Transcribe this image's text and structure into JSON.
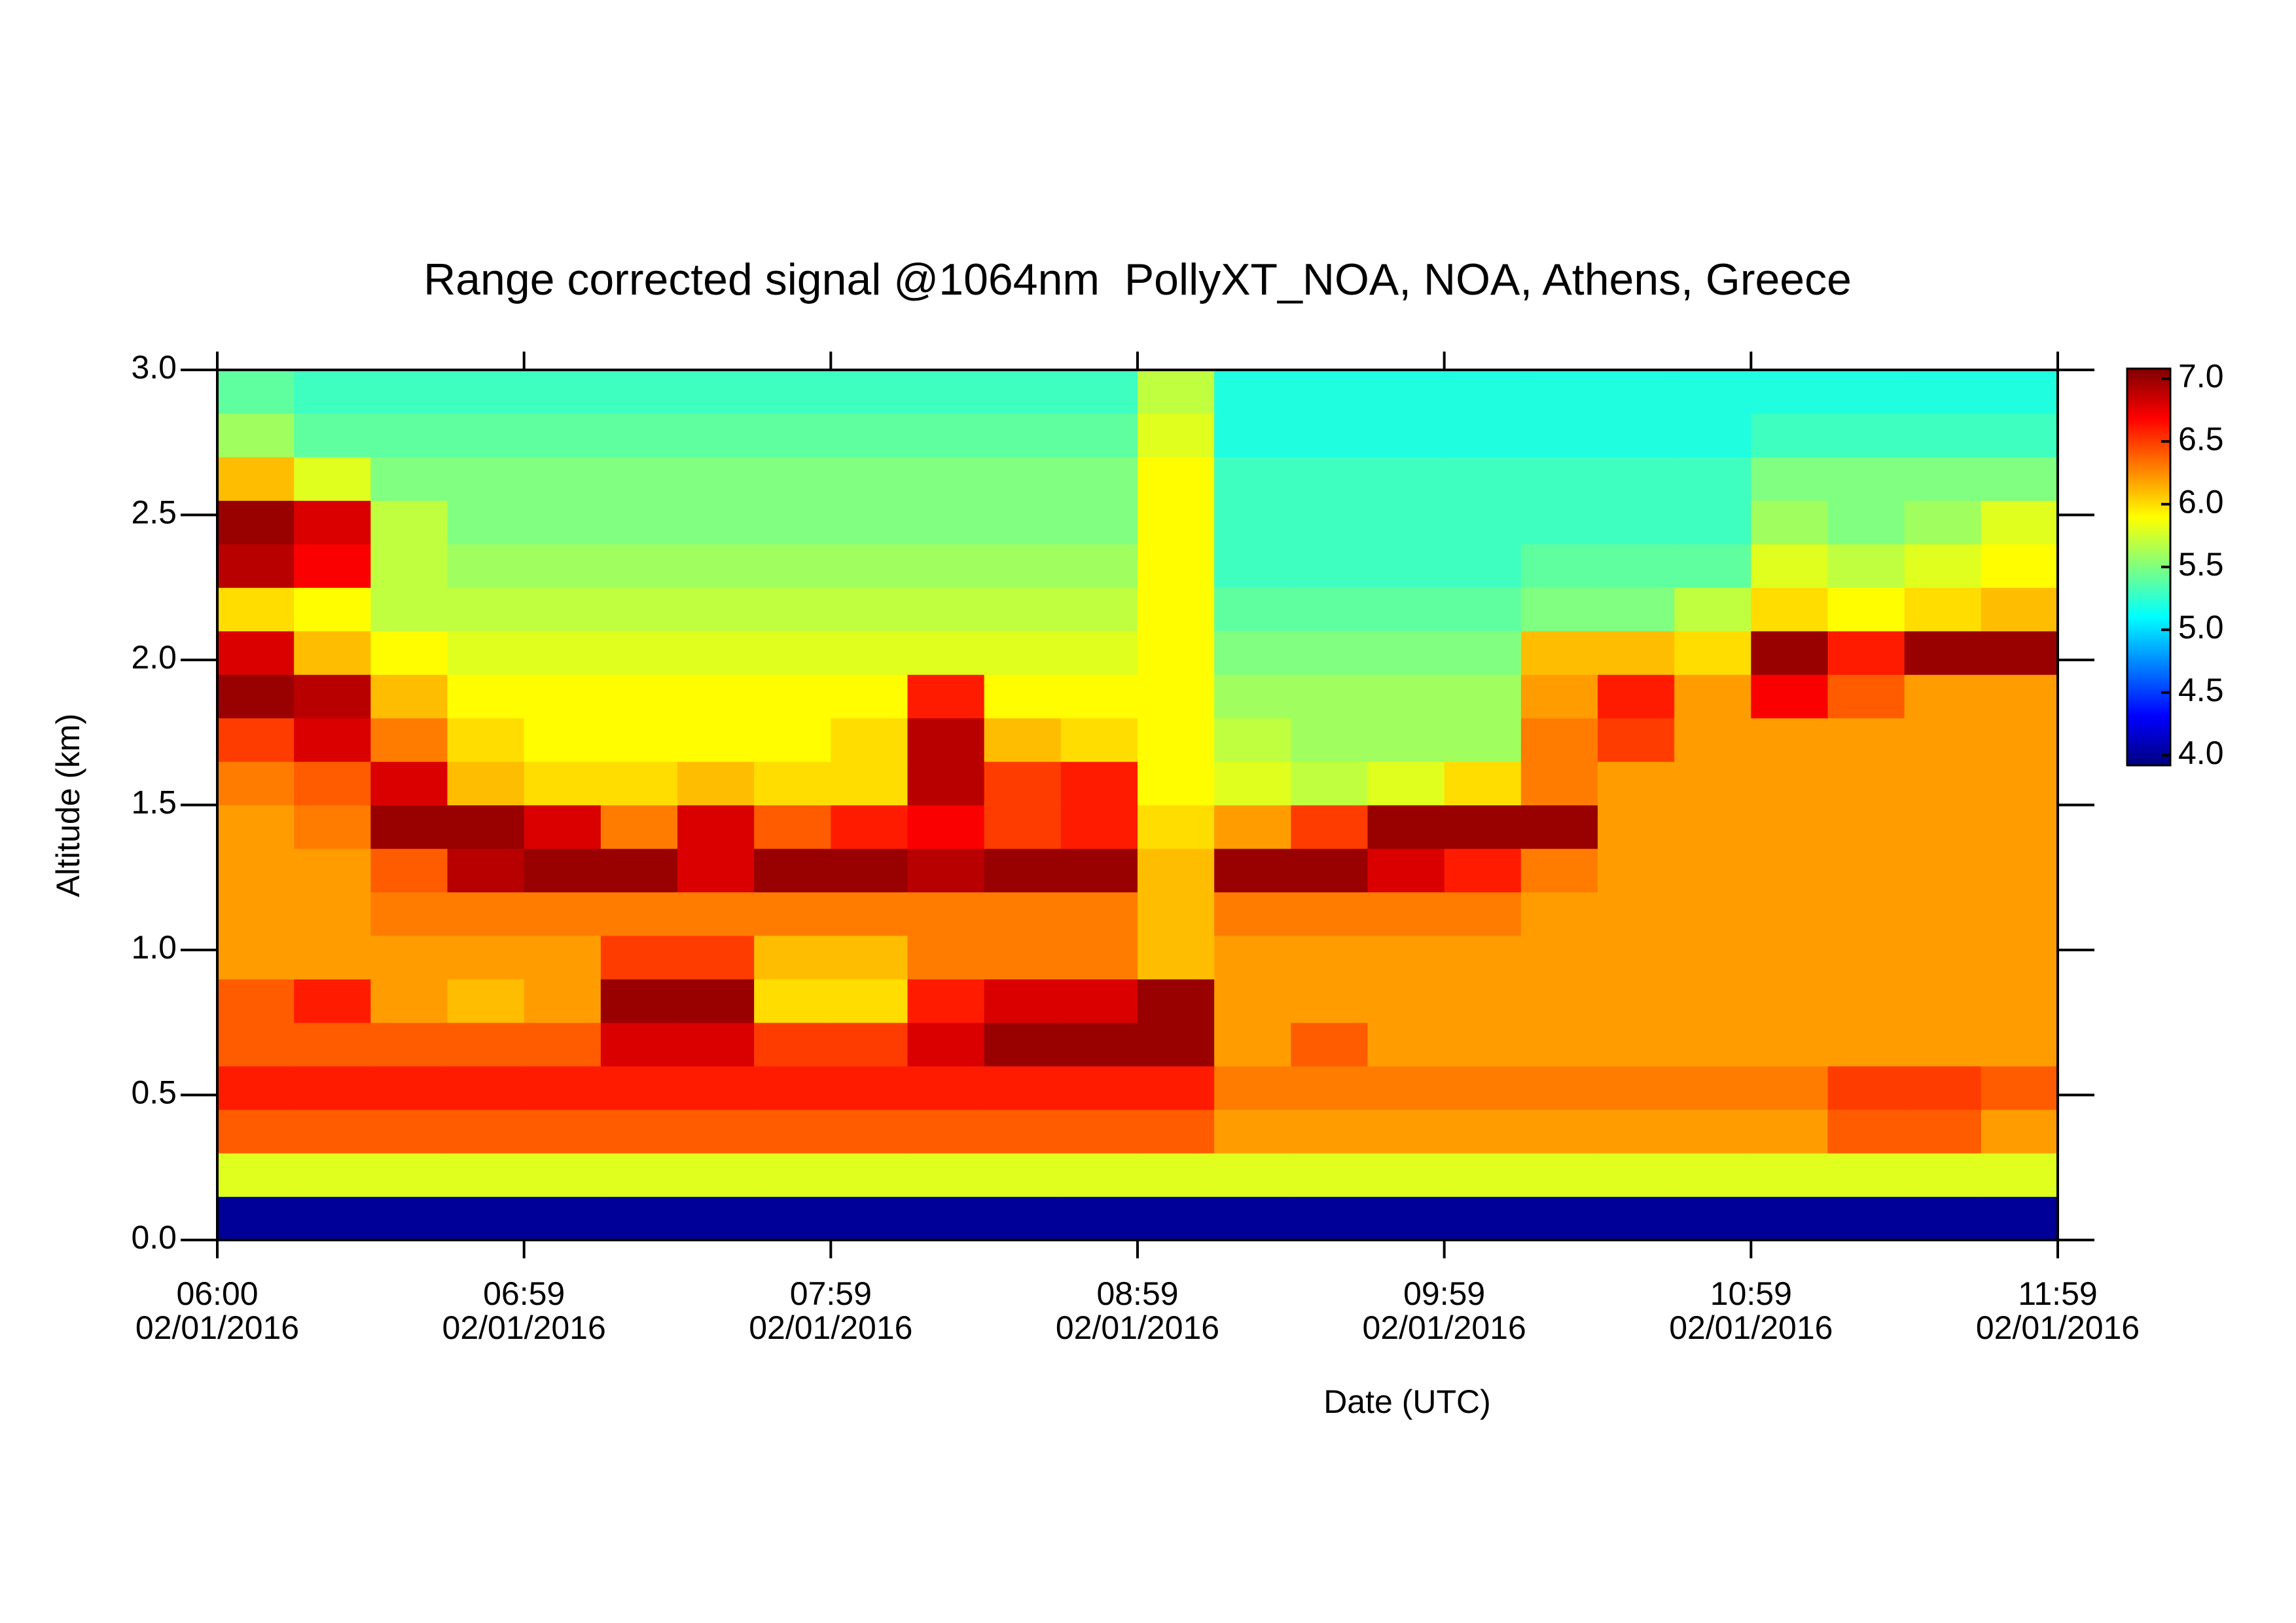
{
  "chart_data": {
    "type": "heatmap",
    "title": "Range corrected signal @1064nm  PollyXT_NOA, NOA, Athens, Greece",
    "xlabel": "Date (UTC)",
    "ylabel": "Altitude (km)",
    "xlim": [
      6,
      12
    ],
    "ylim": [
      0,
      3
    ],
    "xticks": [
      {
        "value": 6,
        "label": "06:00",
        "date": "02/01/2016"
      },
      {
        "value": 7,
        "label": "06:59",
        "date": "02/01/2016"
      },
      {
        "value": 8,
        "label": "07:59",
        "date": "02/01/2016"
      },
      {
        "value": 9,
        "label": "08:59",
        "date": "02/01/2016"
      },
      {
        "value": 10,
        "label": "09:59",
        "date": "02/01/2016"
      },
      {
        "value": 11,
        "label": "10:59",
        "date": "02/01/2016"
      },
      {
        "value": 12,
        "label": "11:59",
        "date": "02/01/2016"
      }
    ],
    "yticks": [
      {
        "value": 0,
        "label": "0.0"
      },
      {
        "value": 0.5,
        "label": "0.5"
      },
      {
        "value": 1,
        "label": "1.0"
      },
      {
        "value": 1.5,
        "label": "1.5"
      },
      {
        "value": 2,
        "label": "2.0"
      },
      {
        "value": 2.5,
        "label": "2.5"
      },
      {
        "value": 3,
        "label": "3.0"
      }
    ],
    "x": [
      6.125,
      6.375,
      6.625,
      6.875,
      7.125,
      7.375,
      7.625,
      7.875,
      8.125,
      8.375,
      8.625,
      8.875,
      9.125,
      9.375,
      9.625,
      9.875,
      10.125,
      10.375,
      10.625,
      10.875,
      11.125,
      11.375,
      11.625,
      11.875
    ],
    "y": [
      0.075,
      0.225,
      0.375,
      0.525,
      0.675,
      0.825,
      0.975,
      1.125,
      1.275,
      1.425,
      1.575,
      1.725,
      1.875,
      2.025,
      2.175,
      2.325,
      2.475,
      2.625,
      2.775,
      2.925
    ],
    "z": [
      [
        4,
        4,
        4,
        4,
        4,
        4,
        4,
        4,
        4,
        4,
        4,
        4,
        4,
        4,
        4,
        4,
        4,
        4,
        4,
        4,
        4,
        4,
        4,
        4
      ],
      [
        5.8,
        5.8,
        5.8,
        5.8,
        5.8,
        5.8,
        5.8,
        5.8,
        5.8,
        5.8,
        5.8,
        5.8,
        5.8,
        5.8,
        5.8,
        5.8,
        5.8,
        5.8,
        5.8,
        5.8,
        5.8,
        5.8,
        5.8,
        5.8
      ],
      [
        6.4,
        6.4,
        6.4,
        6.4,
        6.4,
        6.4,
        6.4,
        6.4,
        6.4,
        6.4,
        6.4,
        6.4,
        6.4,
        6.2,
        6.2,
        6.2,
        6.2,
        6.2,
        6.2,
        6.2,
        6.2,
        6.4,
        6.4,
        6.2
      ],
      [
        6.6,
        6.6,
        6.6,
        6.6,
        6.6,
        6.6,
        6.6,
        6.6,
        6.6,
        6.6,
        6.6,
        6.6,
        6.6,
        6.3,
        6.3,
        6.3,
        6.3,
        6.3,
        6.3,
        6.3,
        6.3,
        6.5,
        6.5,
        6.4
      ],
      [
        6.4,
        6.4,
        6.4,
        6.4,
        6.4,
        6.8,
        6.8,
        6.5,
        6.5,
        6.8,
        7.0,
        7.0,
        7.0,
        6.2,
        6.4,
        6.2,
        6.2,
        6.2,
        6.2,
        6.2,
        6.2,
        6.2,
        6.2,
        6.2
      ],
      [
        6.4,
        6.6,
        6.2,
        6.1,
        6.2,
        7.0,
        7.0,
        6.0,
        6.0,
        6.6,
        6.8,
        6.8,
        7.0,
        6.2,
        6.2,
        6.2,
        6.2,
        6.2,
        6.2,
        6.2,
        6.2,
        6.2,
        6.2,
        6.2
      ],
      [
        6.2,
        6.2,
        6.2,
        6.2,
        6.2,
        6.5,
        6.5,
        6.1,
        6.1,
        6.3,
        6.3,
        6.3,
        6.1,
        6.2,
        6.2,
        6.2,
        6.2,
        6.2,
        6.2,
        6.2,
        6.2,
        6.2,
        6.2,
        6.2
      ],
      [
        6.2,
        6.2,
        6.3,
        6.3,
        6.3,
        6.3,
        6.3,
        6.3,
        6.3,
        6.3,
        6.3,
        6.3,
        6.1,
        6.3,
        6.3,
        6.3,
        6.3,
        6.2,
        6.2,
        6.2,
        6.2,
        6.2,
        6.2,
        6.2
      ],
      [
        6.2,
        6.2,
        6.4,
        6.9,
        7.0,
        7.0,
        6.8,
        7.0,
        7.0,
        6.9,
        7.0,
        7.0,
        6.1,
        7.0,
        7.0,
        6.8,
        6.6,
        6.3,
        6.2,
        6.2,
        6.2,
        6.2,
        6.2,
        6.2
      ],
      [
        6.2,
        6.3,
        7.0,
        7.0,
        6.8,
        6.3,
        6.8,
        6.4,
        6.6,
        6.7,
        6.5,
        6.6,
        6.0,
        6.2,
        6.5,
        7.0,
        7.0,
        7.0,
        6.2,
        6.2,
        6.2,
        6.2,
        6.2,
        6.2
      ],
      [
        6.3,
        6.4,
        6.8,
        6.1,
        6.0,
        6.0,
        6.1,
        6.0,
        6.0,
        6.9,
        6.5,
        6.6,
        5.9,
        5.8,
        5.7,
        5.8,
        6.0,
        6.3,
        6.2,
        6.2,
        6.2,
        6.2,
        6.2,
        6.2
      ],
      [
        6.5,
        6.8,
        6.3,
        6.0,
        5.9,
        5.9,
        5.9,
        5.9,
        6.0,
        6.9,
        6.1,
        6.0,
        5.9,
        5.7,
        5.6,
        5.6,
        5.6,
        6.3,
        6.5,
        6.2,
        6.2,
        6.2,
        6.2,
        6.2
      ],
      [
        7.0,
        6.9,
        6.1,
        5.9,
        5.9,
        5.9,
        5.9,
        5.9,
        5.9,
        6.6,
        5.9,
        5.9,
        5.9,
        5.6,
        5.6,
        5.6,
        5.6,
        6.2,
        6.6,
        6.2,
        6.7,
        6.4,
        6.2,
        6.2
      ],
      [
        6.8,
        6.1,
        5.9,
        5.8,
        5.8,
        5.8,
        5.8,
        5.8,
        5.8,
        5.8,
        5.8,
        5.8,
        5.9,
        5.5,
        5.5,
        5.5,
        5.5,
        6.1,
        6.1,
        6.0,
        7.0,
        6.6,
        7.0,
        7.0
      ],
      [
        6.0,
        5.9,
        5.7,
        5.7,
        5.7,
        5.7,
        5.7,
        5.7,
        5.7,
        5.7,
        5.7,
        5.7,
        5.9,
        5.4,
        5.4,
        5.4,
        5.4,
        5.5,
        5.5,
        5.7,
        6.0,
        5.9,
        6.0,
        6.1
      ],
      [
        6.9,
        6.7,
        5.7,
        5.6,
        5.6,
        5.6,
        5.6,
        5.6,
        5.6,
        5.6,
        5.6,
        5.6,
        5.9,
        5.3,
        5.3,
        5.3,
        5.3,
        5.4,
        5.4,
        5.4,
        5.8,
        5.7,
        5.8,
        5.9
      ],
      [
        7.0,
        6.8,
        5.7,
        5.5,
        5.5,
        5.5,
        5.5,
        5.5,
        5.5,
        5.5,
        5.5,
        5.5,
        5.9,
        5.3,
        5.3,
        5.3,
        5.3,
        5.3,
        5.3,
        5.3,
        5.6,
        5.5,
        5.6,
        5.8
      ],
      [
        6.1,
        5.8,
        5.5,
        5.5,
        5.5,
        5.5,
        5.5,
        5.5,
        5.5,
        5.5,
        5.5,
        5.5,
        5.9,
        5.3,
        5.3,
        5.3,
        5.3,
        5.3,
        5.3,
        5.3,
        5.5,
        5.5,
        5.5,
        5.5
      ],
      [
        5.6,
        5.4,
        5.4,
        5.4,
        5.4,
        5.4,
        5.4,
        5.4,
        5.4,
        5.4,
        5.4,
        5.4,
        5.8,
        5.2,
        5.2,
        5.2,
        5.2,
        5.2,
        5.2,
        5.2,
        5.3,
        5.3,
        5.3,
        5.3
      ],
      [
        5.4,
        5.3,
        5.3,
        5.3,
        5.3,
        5.3,
        5.3,
        5.3,
        5.3,
        5.3,
        5.3,
        5.3,
        5.7,
        5.2,
        5.2,
        5.2,
        5.2,
        5.2,
        5.2,
        5.2,
        5.2,
        5.2,
        5.2,
        5.2
      ]
    ],
    "colorbar": {
      "zlim": [
        3.92,
        7.08
      ],
      "ticks": [
        {
          "value": 4,
          "label": "4.0"
        },
        {
          "value": 4.5,
          "label": "4.5"
        },
        {
          "value": 5,
          "label": "5.0"
        },
        {
          "value": 5.5,
          "label": "5.5"
        },
        {
          "value": 6,
          "label": "6.0"
        },
        {
          "value": 6.5,
          "label": "6.5"
        },
        {
          "value": 7,
          "label": "7.0"
        }
      ],
      "colormap": [
        [
          0,
          "#00007f"
        ],
        [
          0.125,
          "#0000ff"
        ],
        [
          0.375,
          "#00ffff"
        ],
        [
          0.625,
          "#ffff00"
        ],
        [
          0.875,
          "#ff0000"
        ],
        [
          1,
          "#7f0000"
        ]
      ]
    }
  }
}
